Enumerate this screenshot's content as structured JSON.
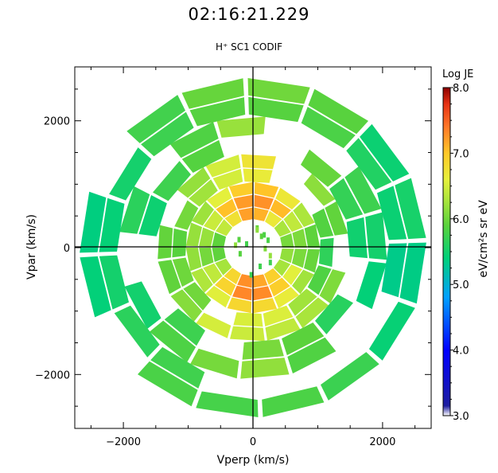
{
  "header": {
    "time": "02:16:21.229",
    "subtitle": "H⁺ SC1 CODIF"
  },
  "chart_data": {
    "type": "heatmap",
    "title": "02:16:21.229",
    "subtitle": "H⁺ SC1 CODIF",
    "xlabel": "Vperp (km/s)",
    "ylabel": "Vpar (km/s)",
    "xlim": [
      -2750,
      2750
    ],
    "ylim": [
      -2850,
      2850
    ],
    "x_ticks": [
      -2000,
      0,
      2000
    ],
    "y_ticks": [
      2000,
      0,
      -2000
    ],
    "x_tick_labels": [
      "−2000",
      "0",
      "2000"
    ],
    "y_tick_labels": [
      "2000",
      "0",
      "−2000"
    ],
    "crosshair_at_origin": true,
    "grid": false,
    "colorbar": {
      "title": "Log JE",
      "label": "eV/cm²s sr eV",
      "range": [
        3.0,
        8.0
      ],
      "ticks": [
        8.0,
        7.0,
        6.0,
        5.0,
        4.0,
        3.0
      ],
      "tick_labels": [
        "8.0",
        "7.0",
        "6.0",
        "5.0",
        "4.0",
        "3.0"
      ],
      "placement": "right",
      "colors": [
        "#ffffff",
        "#1e1ea0",
        "#0000ff",
        "#00a0ff",
        "#00d07a",
        "#5ad23c",
        "#aee63c",
        "#e6f03c",
        "#ffc828",
        "#ff7828",
        "#e63214",
        "#8c0000"
      ]
    },
    "rings": [
      {
        "r_inner": 450,
        "r_outer": 1050,
        "peak_angle_deg": [
          90,
          270
        ],
        "peak_value": 7.4,
        "min_value": 6.0
      },
      {
        "r_inner": 1050,
        "r_outer": 1500,
        "peak_angle_deg": [
          90,
          270
        ],
        "peak_value": 6.6,
        "min_value": 5.8
      },
      {
        "r_inner": 1500,
        "r_outer": 2100,
        "peak_angle_deg": [
          90,
          270
        ],
        "peak_value": 6.1,
        "min_value": 5.5
      },
      {
        "r_inner": 2100,
        "r_outer": 2700,
        "peak_angle_deg": [
          90,
          270
        ],
        "peak_value": 5.9,
        "min_value": 5.4
      }
    ]
  }
}
